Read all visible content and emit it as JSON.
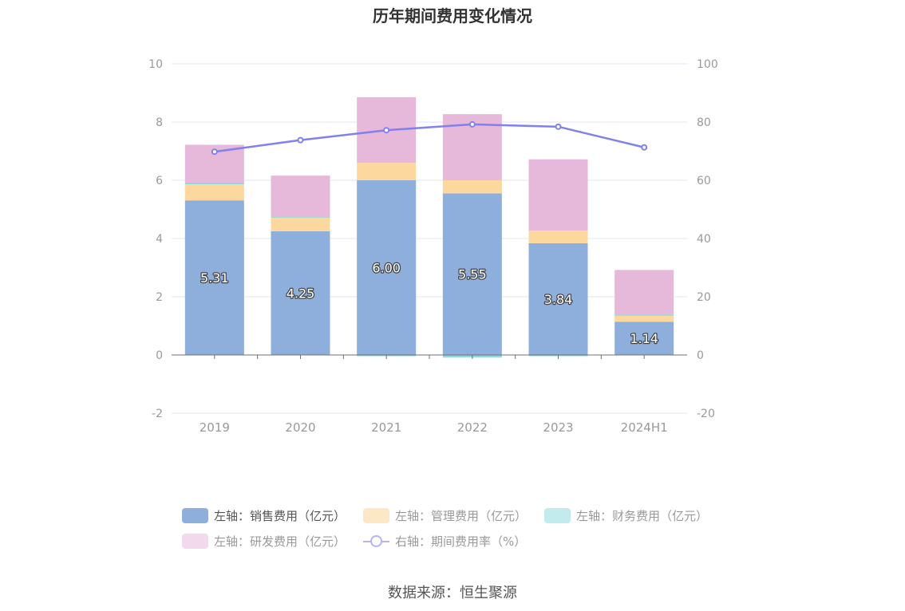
{
  "title": "历年期间费用变化情况",
  "source": "数据来源：恒生聚源",
  "chart_data": {
    "type": "bar",
    "stacked": true,
    "categories": [
      "2019",
      "2020",
      "2021",
      "2022",
      "2023",
      "2024H1"
    ],
    "left_axis": {
      "ylim": [
        -2,
        10
      ],
      "ticks": [
        "10",
        "8",
        "6",
        "4",
        "2",
        "0",
        "-2"
      ]
    },
    "right_axis": {
      "ylim": [
        -20,
        100
      ],
      "ticks": [
        "100",
        "80",
        "60",
        "40",
        "20",
        "0",
        "-20"
      ]
    },
    "series": [
      {
        "name": "左轴：销售费用（亿元）",
        "kind": "bar",
        "axis": "left",
        "color": "#8eaedb",
        "values": [
          5.31,
          4.25,
          6.0,
          5.55,
          3.84,
          1.14
        ],
        "labels": [
          "5.31",
          "4.25",
          "6.00",
          "5.55",
          "3.84",
          "1.14"
        ]
      },
      {
        "name": "左轴：管理费用（亿元）",
        "kind": "bar",
        "axis": "left",
        "color": "#fdd89e",
        "values": [
          0.55,
          0.5,
          0.6,
          0.45,
          0.43,
          0.24
        ]
      },
      {
        "name": "左轴：财务费用（亿元）",
        "kind": "bar",
        "axis": "left",
        "color": "#8fd9dd",
        "values": [
          0.06,
          0.01,
          -0.03,
          -0.09,
          -0.02,
          0.01
        ]
      },
      {
        "name": "左轴：研发费用（亿元）",
        "kind": "bar",
        "axis": "left",
        "color": "#e6b8d9",
        "values": [
          1.3,
          1.4,
          2.25,
          2.27,
          2.45,
          1.53
        ]
      },
      {
        "name": "右轴：期间费用率（%）",
        "kind": "line",
        "axis": "right",
        "color": "#8080ee",
        "values": [
          69.8,
          73.8,
          77.2,
          79.2,
          78.4,
          71.3
        ]
      }
    ],
    "grid": true
  },
  "legend": {
    "rows": [
      [
        {
          "label": "左轴：销售费用（亿元）",
          "color": "#8eaedb",
          "style": "box",
          "active": true
        },
        {
          "label": "左轴：管理费用（亿元）",
          "color": "#fde8c6",
          "style": "box",
          "active": false
        },
        {
          "label": "左轴：财务费用（亿元）",
          "color": "#c2ebee",
          "style": "box",
          "active": false
        }
      ],
      [
        {
          "label": "左轴：研发费用（亿元）",
          "color": "#f3d9ec",
          "style": "box",
          "active": false
        },
        {
          "label": "右轴：期间费用率（%）",
          "color": "#b4b4f2",
          "style": "line",
          "active": false
        }
      ]
    ]
  }
}
